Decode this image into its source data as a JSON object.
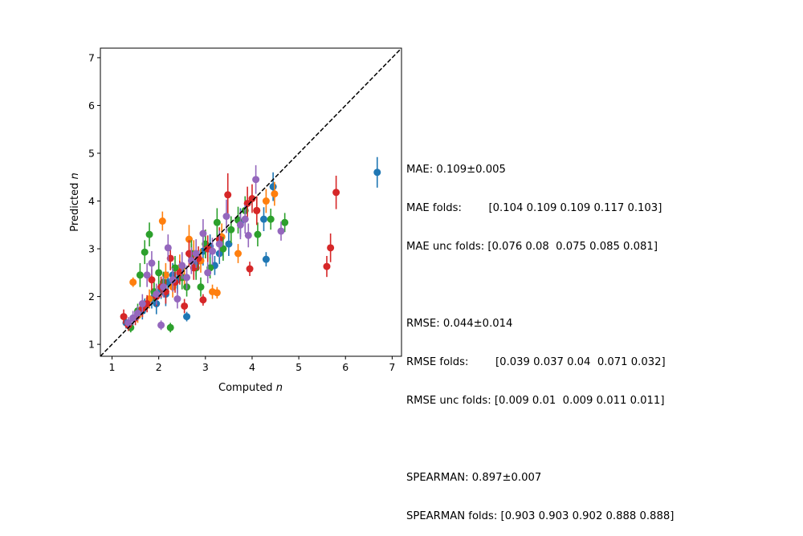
{
  "chart_data": {
    "type": "scatter",
    "xlabel": "Computed n",
    "ylabel": "Predicted n",
    "xlim": [
      0.75,
      7.2
    ],
    "ylim": [
      0.75,
      7.2
    ],
    "xticks": [
      "1",
      "2",
      "3",
      "4",
      "5",
      "6",
      "7"
    ],
    "yticks": [
      "1",
      "2",
      "3",
      "4",
      "5",
      "6",
      "7"
    ],
    "parity_line": "y = x, dashed black",
    "grid": false,
    "legend": "none",
    "series": [
      {
        "color": "#1f77b4",
        "points": [
          [
            1.3,
            1.45,
            0.12
          ],
          [
            1.45,
            1.55,
            0.13
          ],
          [
            1.55,
            1.65,
            0.15
          ],
          [
            1.65,
            1.7,
            0.18
          ],
          [
            1.7,
            1.8,
            0.16
          ],
          [
            1.85,
            1.95,
            0.2
          ],
          [
            1.95,
            1.85,
            0.22
          ],
          [
            2.05,
            2.15,
            0.2
          ],
          [
            2.15,
            2.05,
            0.25
          ],
          [
            2.2,
            2.3,
            0.22
          ],
          [
            2.3,
            2.45,
            0.25
          ],
          [
            2.4,
            2.35,
            0.28
          ],
          [
            2.5,
            2.6,
            0.3
          ],
          [
            2.6,
            1.58,
            0.1
          ],
          [
            2.7,
            2.85,
            0.25
          ],
          [
            2.8,
            2.7,
            0.28
          ],
          [
            2.95,
            2.95,
            0.3
          ],
          [
            3.1,
            3.05,
            0.25
          ],
          [
            3.2,
            2.65,
            0.2
          ],
          [
            3.3,
            2.9,
            0.22
          ],
          [
            3.5,
            3.1,
            0.25
          ],
          [
            3.75,
            3.55,
            0.3
          ],
          [
            4.25,
            3.62,
            0.25
          ],
          [
            4.3,
            2.78,
            0.15
          ],
          [
            4.45,
            4.3,
            0.3
          ],
          [
            6.68,
            4.6,
            0.32
          ]
        ]
      },
      {
        "color": "#ff7f0e",
        "points": [
          [
            1.45,
            2.3,
            0.1
          ],
          [
            1.55,
            1.6,
            0.15
          ],
          [
            1.65,
            1.75,
            0.18
          ],
          [
            1.8,
            1.95,
            0.2
          ],
          [
            1.9,
            2.1,
            0.2
          ],
          [
            2.08,
            3.58,
            0.2
          ],
          [
            2.15,
            2.45,
            0.25
          ],
          [
            2.3,
            2.2,
            0.22
          ],
          [
            2.45,
            2.6,
            0.28
          ],
          [
            2.55,
            2.4,
            0.25
          ],
          [
            2.65,
            3.2,
            0.3
          ],
          [
            2.75,
            2.9,
            0.28
          ],
          [
            2.9,
            2.75,
            0.25
          ],
          [
            3.0,
            3.1,
            0.3
          ],
          [
            3.15,
            2.1,
            0.15
          ],
          [
            3.25,
            2.08,
            0.12
          ],
          [
            3.35,
            3.25,
            0.28
          ],
          [
            3.7,
            2.9,
            0.2
          ],
          [
            4.1,
            3.8,
            0.3
          ],
          [
            4.3,
            4.0,
            0.25
          ],
          [
            4.48,
            4.15,
            0.25
          ]
        ]
      },
      {
        "color": "#2ca02c",
        "points": [
          [
            1.4,
            1.35,
            0.1
          ],
          [
            1.55,
            1.7,
            0.15
          ],
          [
            1.6,
            2.45,
            0.25
          ],
          [
            1.7,
            2.93,
            0.25
          ],
          [
            1.8,
            3.3,
            0.25
          ],
          [
            1.9,
            2.1,
            0.2
          ],
          [
            2.0,
            2.5,
            0.25
          ],
          [
            2.1,
            2.3,
            0.22
          ],
          [
            2.25,
            1.35,
            0.1
          ],
          [
            2.35,
            2.6,
            0.25
          ],
          [
            2.5,
            2.4,
            0.25
          ],
          [
            2.6,
            2.2,
            0.2
          ],
          [
            2.7,
            2.9,
            0.28
          ],
          [
            2.8,
            2.6,
            0.25
          ],
          [
            2.9,
            2.2,
            0.2
          ],
          [
            3.0,
            3.1,
            0.3
          ],
          [
            3.1,
            2.6,
            0.22
          ],
          [
            3.25,
            3.55,
            0.3
          ],
          [
            3.38,
            3.0,
            0.25
          ],
          [
            3.55,
            3.4,
            0.28
          ],
          [
            3.7,
            3.6,
            0.28
          ],
          [
            3.85,
            3.8,
            0.3
          ],
          [
            4.12,
            3.3,
            0.25
          ],
          [
            4.4,
            3.62,
            0.22
          ],
          [
            4.7,
            3.55,
            0.2
          ]
        ]
      },
      {
        "color": "#d62728",
        "points": [
          [
            1.25,
            1.58,
            0.15
          ],
          [
            1.35,
            1.4,
            0.12
          ],
          [
            1.5,
            1.55,
            0.15
          ],
          [
            1.65,
            1.75,
            0.18
          ],
          [
            1.75,
            1.85,
            0.18
          ],
          [
            1.85,
            2.35,
            0.22
          ],
          [
            1.95,
            2.0,
            0.2
          ],
          [
            2.05,
            2.2,
            0.22
          ],
          [
            2.15,
            2.1,
            0.25
          ],
          [
            2.25,
            2.8,
            0.25
          ],
          [
            2.35,
            2.3,
            0.22
          ],
          [
            2.45,
            2.5,
            0.25
          ],
          [
            2.55,
            1.8,
            0.15
          ],
          [
            2.65,
            2.9,
            0.28
          ],
          [
            2.75,
            2.6,
            0.25
          ],
          [
            2.85,
            2.8,
            0.25
          ],
          [
            2.95,
            1.93,
            0.12
          ],
          [
            3.05,
            3.0,
            0.28
          ],
          [
            3.3,
            3.2,
            0.25
          ],
          [
            3.48,
            4.13,
            0.45
          ],
          [
            3.95,
            2.58,
            0.15
          ],
          [
            3.9,
            3.95,
            0.35
          ],
          [
            4.0,
            4.05,
            0.3
          ],
          [
            4.1,
            3.8,
            0.3
          ],
          [
            5.6,
            2.63,
            0.22
          ],
          [
            5.68,
            3.02,
            0.3
          ],
          [
            5.8,
            4.18,
            0.35
          ]
        ]
      },
      {
        "color": "#9467bd",
        "points": [
          [
            1.35,
            1.45,
            0.12
          ],
          [
            1.45,
            1.55,
            0.15
          ],
          [
            1.55,
            1.65,
            0.15
          ],
          [
            1.65,
            1.85,
            0.2
          ],
          [
            1.75,
            2.45,
            0.25
          ],
          [
            1.85,
            2.7,
            0.25
          ],
          [
            1.95,
            2.05,
            0.22
          ],
          [
            2.05,
            1.4,
            0.1
          ],
          [
            2.1,
            2.2,
            0.22
          ],
          [
            2.2,
            3.02,
            0.28
          ],
          [
            2.3,
            2.35,
            0.25
          ],
          [
            2.4,
            1.95,
            0.2
          ],
          [
            2.5,
            2.65,
            0.28
          ],
          [
            2.6,
            2.4,
            0.25
          ],
          [
            2.7,
            2.75,
            0.28
          ],
          [
            2.8,
            2.9,
            0.3
          ],
          [
            2.95,
            3.32,
            0.3
          ],
          [
            3.05,
            2.5,
            0.22
          ],
          [
            3.15,
            2.95,
            0.28
          ],
          [
            3.3,
            3.1,
            0.28
          ],
          [
            3.45,
            3.68,
            0.35
          ],
          [
            3.75,
            3.5,
            0.3
          ],
          [
            3.85,
            3.62,
            0.3
          ],
          [
            3.92,
            3.28,
            0.25
          ],
          [
            4.08,
            4.45,
            0.3
          ],
          [
            4.62,
            3.37,
            0.2
          ]
        ]
      }
    ]
  },
  "metrics": {
    "lines": [
      "MAE: 0.109±0.005",
      "MAE folds:        [0.104 0.109 0.109 0.117 0.103]",
      "MAE unc folds: [0.076 0.08  0.075 0.085 0.081]",
      "",
      "RMSE: 0.044±0.014",
      "RMSE folds:        [0.039 0.037 0.04  0.071 0.032]",
      "RMSE unc folds: [0.009 0.01  0.009 0.011 0.011]",
      "",
      "SPEARMAN: 0.897±0.007",
      "SPEARMAN folds: [0.903 0.903 0.902 0.888 0.888]"
    ]
  }
}
